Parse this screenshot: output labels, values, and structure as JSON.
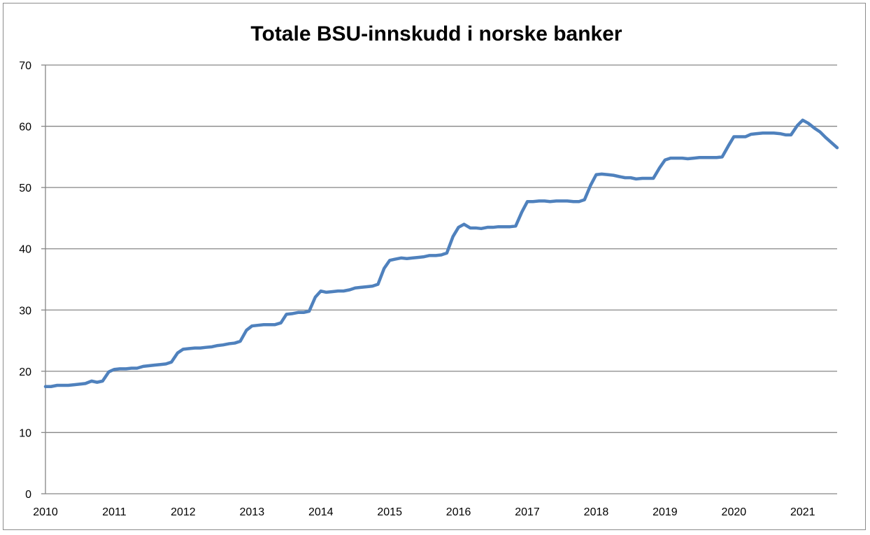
{
  "chart_data": {
    "type": "line",
    "title": "Totale BSU-innskudd i norske banker",
    "xlabel": "",
    "ylabel": "",
    "ylim": [
      0,
      70
    ],
    "xlim": [
      2010,
      2021.5
    ],
    "yticks": [
      0,
      10,
      20,
      30,
      40,
      50,
      60,
      70
    ],
    "xticks": [
      2010,
      2011,
      2012,
      2013,
      2014,
      2015,
      2016,
      2017,
      2018,
      2019,
      2020,
      2021
    ],
    "grid": true,
    "legend": "none",
    "colors": {
      "line": "#4f81bd",
      "grid": "#868686"
    },
    "series": [
      {
        "x": [
          2010.0,
          2010.08,
          2010.17,
          2010.25,
          2010.33,
          2010.42,
          2010.5,
          2010.58,
          2010.67,
          2010.75,
          2010.83,
          2010.92,
          2011.0,
          2011.08,
          2011.17,
          2011.25,
          2011.33,
          2011.42,
          2011.5,
          2011.58,
          2011.67,
          2011.75,
          2011.83,
          2011.92,
          2012.0,
          2012.08,
          2012.17,
          2012.25,
          2012.33,
          2012.42,
          2012.5,
          2012.58,
          2012.67,
          2012.75,
          2012.83,
          2012.92,
          2013.0,
          2013.08,
          2013.17,
          2013.25,
          2013.33,
          2013.42,
          2013.5,
          2013.58,
          2013.67,
          2013.75,
          2013.83,
          2013.92,
          2014.0,
          2014.08,
          2014.17,
          2014.25,
          2014.33,
          2014.42,
          2014.5,
          2014.58,
          2014.67,
          2014.75,
          2014.83,
          2014.92,
          2015.0,
          2015.08,
          2015.17,
          2015.25,
          2015.33,
          2015.42,
          2015.5,
          2015.58,
          2015.67,
          2015.75,
          2015.83,
          2015.92,
          2016.0,
          2016.08,
          2016.17,
          2016.25,
          2016.33,
          2016.42,
          2016.5,
          2016.58,
          2016.67,
          2016.75,
          2016.83,
          2016.92,
          2017.0,
          2017.08,
          2017.17,
          2017.25,
          2017.33,
          2017.42,
          2017.5,
          2017.58,
          2017.67,
          2017.75,
          2017.83,
          2017.92,
          2018.0,
          2018.08,
          2018.17,
          2018.25,
          2018.33,
          2018.42,
          2018.5,
          2018.58,
          2018.67,
          2018.75,
          2018.83,
          2018.92,
          2019.0,
          2019.08,
          2019.17,
          2019.25,
          2019.33,
          2019.42,
          2019.5,
          2019.58,
          2019.67,
          2019.75,
          2019.83,
          2019.92,
          2020.0,
          2020.08,
          2020.17,
          2020.25,
          2020.33,
          2020.42,
          2020.5,
          2020.58,
          2020.67,
          2020.75,
          2020.83,
          2020.92,
          2021.0,
          2021.08,
          2021.17,
          2021.25,
          2021.33,
          2021.42,
          2021.5
        ],
        "values": [
          17.5,
          17.5,
          17.7,
          17.7,
          17.7,
          17.8,
          17.9,
          18.0,
          18.4,
          18.2,
          18.4,
          19.9,
          20.3,
          20.4,
          20.4,
          20.5,
          20.5,
          20.8,
          20.9,
          21.0,
          21.1,
          21.2,
          21.5,
          23.0,
          23.6,
          23.7,
          23.8,
          23.8,
          23.9,
          24.0,
          24.2,
          24.3,
          24.5,
          24.6,
          24.9,
          26.7,
          27.4,
          27.5,
          27.6,
          27.6,
          27.6,
          27.9,
          29.3,
          29.4,
          29.6,
          29.6,
          29.8,
          32.1,
          33.1,
          32.9,
          33.0,
          33.1,
          33.1,
          33.3,
          33.6,
          33.7,
          33.8,
          33.9,
          34.2,
          36.8,
          38.1,
          38.3,
          38.5,
          38.4,
          38.5,
          38.6,
          38.7,
          38.9,
          38.9,
          39.0,
          39.3,
          42.0,
          43.5,
          44.0,
          43.4,
          43.4,
          43.3,
          43.5,
          43.5,
          43.6,
          43.6,
          43.6,
          43.7,
          46.0,
          47.7,
          47.7,
          47.8,
          47.8,
          47.7,
          47.8,
          47.8,
          47.8,
          47.7,
          47.7,
          48.0,
          50.4,
          52.1,
          52.2,
          52.1,
          52.0,
          51.8,
          51.6,
          51.6,
          51.4,
          51.5,
          51.5,
          51.5,
          53.2,
          54.5,
          54.8,
          54.8,
          54.8,
          54.7,
          54.8,
          54.9,
          54.9,
          54.9,
          54.9,
          55.0,
          56.8,
          58.3,
          58.3,
          58.3,
          58.7,
          58.8,
          58.9,
          58.9,
          58.9,
          58.8,
          58.6,
          58.6,
          60.1,
          61.0,
          60.5,
          59.7,
          59.1,
          58.2,
          57.3,
          56.5
        ]
      }
    ]
  }
}
